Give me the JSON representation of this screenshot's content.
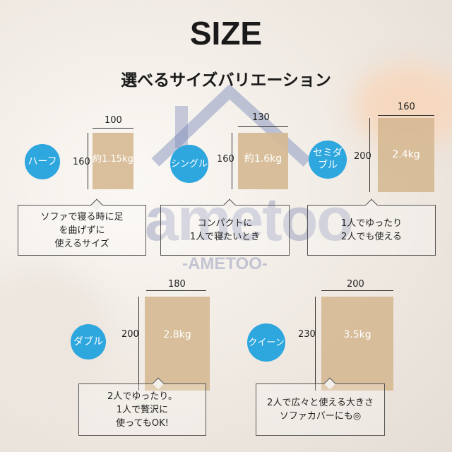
{
  "title": "SIZE",
  "subtitle": "選べるサイズバリエーション",
  "watermark": {
    "logo": "ametoo",
    "sub": "-AMETOO-"
  },
  "colors": {
    "badge": "#2ea6de",
    "size_block": "#d6ba94"
  },
  "sizes": [
    {
      "name": "ハーフ",
      "width": "100",
      "length": "160",
      "weight": "約1.15kg",
      "description": [
        "ソファで寝る時に足",
        "を曲げずに",
        "使えるサイズ"
      ]
    },
    {
      "name": "シングル",
      "width": "130",
      "length": "160",
      "weight": "約1.6kg",
      "description": [
        "コンパクトに",
        "1人で寝たいとき"
      ]
    },
    {
      "name": "セミダブル",
      "name_lines": [
        "セミダ",
        "ブル"
      ],
      "width": "160",
      "length": "200",
      "weight": "2.4kg",
      "description": [
        "1人でゆったり",
        "2人でも使える"
      ]
    },
    {
      "name": "ダブル",
      "width": "180",
      "length": "200",
      "weight": "2.8kg",
      "description": [
        "2人でゆったり。",
        "1人で贅沢に",
        "使ってもOK!"
      ]
    },
    {
      "name": "クイーン",
      "width": "200",
      "length": "230",
      "weight": "3.5kg",
      "description": [
        "2人で広々と使える大きさ",
        "ソファカバーにも◎"
      ]
    }
  ]
}
